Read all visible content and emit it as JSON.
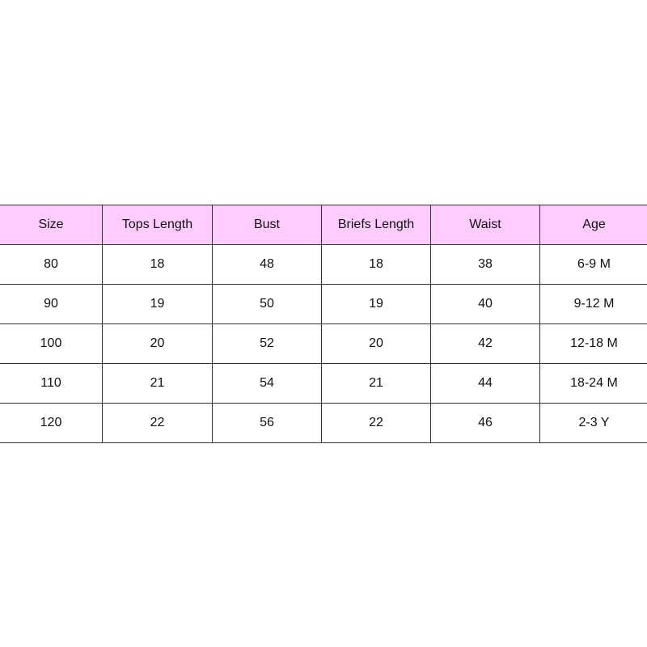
{
  "colors": {
    "header_bg": "#ffccff",
    "border": "#333333"
  },
  "table": {
    "headers": [
      "Size",
      "Tops Length",
      "Bust",
      "Briefs Length",
      "Waist",
      "Age"
    ],
    "rows": [
      [
        "80",
        "18",
        "48",
        "18",
        "38",
        "6-9 M"
      ],
      [
        "90",
        "19",
        "50",
        "19",
        "40",
        "9-12 M"
      ],
      [
        "100",
        "20",
        "52",
        "20",
        "42",
        "12-18 M"
      ],
      [
        "110",
        "21",
        "54",
        "21",
        "44",
        "18-24 M"
      ],
      [
        "120",
        "22",
        "56",
        "22",
        "46",
        "2-3 Y"
      ]
    ]
  }
}
